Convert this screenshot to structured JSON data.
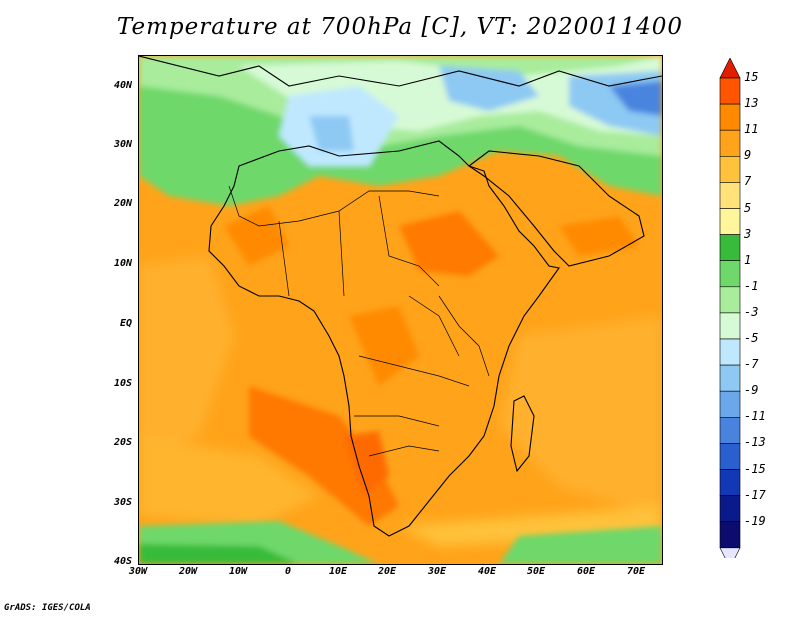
{
  "title": "Temperature at 700hPa [C], VT: 2020011400",
  "credit": "GrADS: IGES/COLA",
  "lat_labels": [
    "40N",
    "30N",
    "20N",
    "10N",
    "EQ",
    "10S",
    "20S",
    "30S",
    "40S"
  ],
  "lon_labels": [
    "30W",
    "20W",
    "10W",
    "0",
    "10E",
    "20E",
    "30E",
    "40E",
    "50E",
    "60E",
    "70E"
  ],
  "colorbar": {
    "labels": [
      "15",
      "13",
      "11",
      "9",
      "7",
      "5",
      "3",
      "1",
      "-1",
      "-3",
      "-5",
      "-7",
      "-9",
      "-11",
      "-13",
      "-15",
      "-17",
      "-19"
    ],
    "colors": [
      "#e21e00",
      "#ff5500",
      "#ff8a00",
      "#ffa31a",
      "#ffc23b",
      "#ffe27a",
      "#fff59b",
      "#38bb3a",
      "#6ed86a",
      "#a8ec9c",
      "#d7fad6",
      "#bfe8ff",
      "#8dc9f3",
      "#6aa8ea",
      "#4884de",
      "#2a5fd0",
      "#1238b6",
      "#0a1a8a",
      "#0c0c6e",
      "#e6e6ff"
    ]
  },
  "fields": {
    "ocean_base": "#ffa02a",
    "land_base": "#ffa31a",
    "north_cold": "#bfe8ff",
    "north_green": "#6ed86a",
    "warm_core": "#ff8a00"
  }
}
